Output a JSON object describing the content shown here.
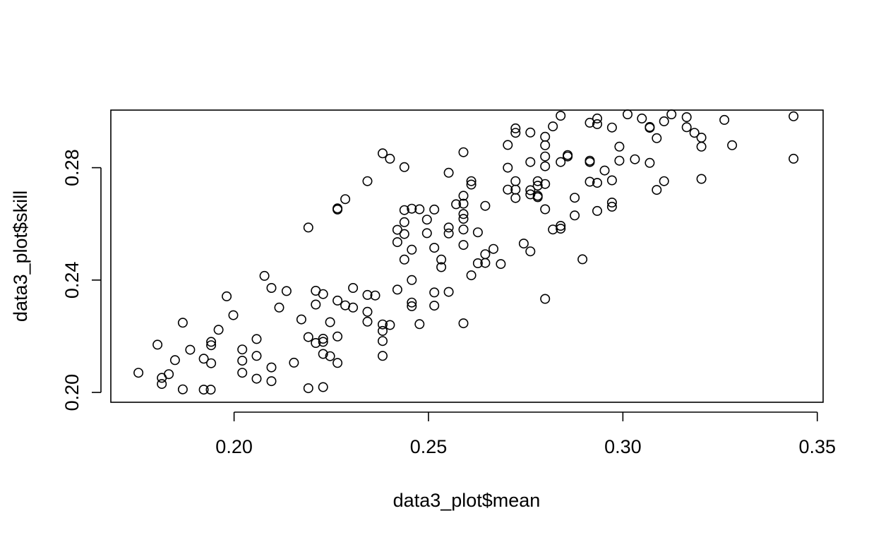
{
  "chart_data": {
    "type": "scatter",
    "title": "",
    "xlabel": "data3_plot$mean",
    "ylabel": "data3_plot$skill",
    "xlim": [
      0.1683,
      0.3515
    ],
    "ylim": [
      0.1965,
      0.3005
    ],
    "grid": false,
    "legend": "none",
    "x_ticks": [
      {
        "value": 0.2,
        "label": "0.20"
      },
      {
        "value": 0.25,
        "label": "0.25"
      },
      {
        "value": 0.3,
        "label": "0.30"
      },
      {
        "value": 0.35,
        "label": "0.35"
      }
    ],
    "y_ticks": [
      {
        "value": 0.2,
        "label": "0.20"
      },
      {
        "value": 0.24,
        "label": "0.24"
      },
      {
        "value": 0.28,
        "label": "0.28"
      }
    ],
    "marker": {
      "shape": "open-circle",
      "color": "#000000"
    },
    "points": [
      [
        0.1754,
        0.207
      ],
      [
        0.1803,
        0.217
      ],
      [
        0.1814,
        0.2052
      ],
      [
        0.1814,
        0.203
      ],
      [
        0.1832,
        0.2065
      ],
      [
        0.1848,
        0.2115
      ],
      [
        0.1868,
        0.2248
      ],
      [
        0.1868,
        0.2011
      ],
      [
        0.1887,
        0.2152
      ],
      [
        0.1922,
        0.212
      ],
      [
        0.1922,
        0.201
      ],
      [
        0.194,
        0.201
      ],
      [
        0.1941,
        0.218
      ],
      [
        0.1941,
        0.2168
      ],
      [
        0.1941,
        0.2104
      ],
      [
        0.196,
        0.2223
      ],
      [
        0.1981,
        0.2342
      ],
      [
        0.1998,
        0.2275
      ],
      [
        0.2021,
        0.2153
      ],
      [
        0.2021,
        0.2113
      ],
      [
        0.2021,
        0.207
      ],
      [
        0.2058,
        0.219
      ],
      [
        0.2058,
        0.213
      ],
      [
        0.2058,
        0.2049
      ],
      [
        0.2078,
        0.2415
      ],
      [
        0.2096,
        0.2372
      ],
      [
        0.2096,
        0.2089
      ],
      [
        0.2096,
        0.204
      ],
      [
        0.2116,
        0.2302
      ],
      [
        0.2135,
        0.2361
      ],
      [
        0.2154,
        0.2106
      ],
      [
        0.2173,
        0.226
      ],
      [
        0.2191,
        0.2587
      ],
      [
        0.2191,
        0.2197
      ],
      [
        0.2191,
        0.2015
      ],
      [
        0.221,
        0.2362
      ],
      [
        0.221,
        0.2313
      ],
      [
        0.221,
        0.2176
      ],
      [
        0.2229,
        0.235
      ],
      [
        0.2229,
        0.2191
      ],
      [
        0.2229,
        0.218
      ],
      [
        0.2229,
        0.2137
      ],
      [
        0.2229,
        0.2019
      ],
      [
        0.2247,
        0.225
      ],
      [
        0.2247,
        0.2129
      ],
      [
        0.2266,
        0.2655
      ],
      [
        0.2266,
        0.2651
      ],
      [
        0.2266,
        0.2327
      ],
      [
        0.2266,
        0.2199
      ],
      [
        0.2266,
        0.2105
      ],
      [
        0.2286,
        0.2688
      ],
      [
        0.2286,
        0.231
      ],
      [
        0.2306,
        0.2372
      ],
      [
        0.2306,
        0.2302
      ],
      [
        0.2343,
        0.2752
      ],
      [
        0.2343,
        0.2347
      ],
      [
        0.2343,
        0.2287
      ],
      [
        0.2343,
        0.2252
      ],
      [
        0.2363,
        0.2345
      ],
      [
        0.2382,
        0.2851
      ],
      [
        0.2382,
        0.2242
      ],
      [
        0.2382,
        0.2219
      ],
      [
        0.2382,
        0.2183
      ],
      [
        0.2382,
        0.213
      ],
      [
        0.2401,
        0.2832
      ],
      [
        0.2401,
        0.224
      ],
      [
        0.242,
        0.2579
      ],
      [
        0.242,
        0.2535
      ],
      [
        0.242,
        0.2366
      ],
      [
        0.2438,
        0.2802
      ],
      [
        0.2438,
        0.2649
      ],
      [
        0.2438,
        0.2606
      ],
      [
        0.2438,
        0.2564
      ],
      [
        0.2438,
        0.2473
      ],
      [
        0.2457,
        0.2654
      ],
      [
        0.2457,
        0.2508
      ],
      [
        0.2457,
        0.24
      ],
      [
        0.2457,
        0.232
      ],
      [
        0.2457,
        0.2307
      ],
      [
        0.2477,
        0.2652
      ],
      [
        0.2477,
        0.2243
      ],
      [
        0.2496,
        0.2615
      ],
      [
        0.2496,
        0.2567
      ],
      [
        0.2515,
        0.2651
      ],
      [
        0.2515,
        0.2515
      ],
      [
        0.2515,
        0.2356
      ],
      [
        0.2515,
        0.2309
      ],
      [
        0.2533,
        0.2473
      ],
      [
        0.2533,
        0.2446
      ],
      [
        0.2552,
        0.2782
      ],
      [
        0.2552,
        0.2587
      ],
      [
        0.2552,
        0.2566
      ],
      [
        0.2552,
        0.2358
      ],
      [
        0.2571,
        0.267
      ],
      [
        0.259,
        0.2855
      ],
      [
        0.259,
        0.27
      ],
      [
        0.259,
        0.2672
      ],
      [
        0.259,
        0.2635
      ],
      [
        0.259,
        0.2618
      ],
      [
        0.259,
        0.258
      ],
      [
        0.259,
        0.2525
      ],
      [
        0.259,
        0.2246
      ],
      [
        0.261,
        0.2752
      ],
      [
        0.261,
        0.274
      ],
      [
        0.261,
        0.2417
      ],
      [
        0.2627,
        0.257
      ],
      [
        0.2627,
        0.246
      ],
      [
        0.2646,
        0.2664
      ],
      [
        0.2646,
        0.2492
      ],
      [
        0.2646,
        0.2461
      ],
      [
        0.2667,
        0.2511
      ],
      [
        0.2686,
        0.2457
      ],
      [
        0.2704,
        0.2881
      ],
      [
        0.2704,
        0.28
      ],
      [
        0.2704,
        0.2722
      ],
      [
        0.2724,
        0.294
      ],
      [
        0.2724,
        0.2924
      ],
      [
        0.2724,
        0.2752
      ],
      [
        0.2724,
        0.2722
      ],
      [
        0.2724,
        0.2692
      ],
      [
        0.2745,
        0.253
      ],
      [
        0.2762,
        0.2925
      ],
      [
        0.2762,
        0.282
      ],
      [
        0.2762,
        0.272
      ],
      [
        0.2762,
        0.2705
      ],
      [
        0.2762,
        0.2502
      ],
      [
        0.2781,
        0.2752
      ],
      [
        0.2781,
        0.2736
      ],
      [
        0.2781,
        0.27
      ],
      [
        0.2781,
        0.2695
      ],
      [
        0.28,
        0.291
      ],
      [
        0.28,
        0.288
      ],
      [
        0.28,
        0.284
      ],
      [
        0.28,
        0.2805
      ],
      [
        0.28,
        0.2742
      ],
      [
        0.28,
        0.2652
      ],
      [
        0.28,
        0.2333
      ],
      [
        0.282,
        0.2947
      ],
      [
        0.282,
        0.258
      ],
      [
        0.284,
        0.2985
      ],
      [
        0.284,
        0.282
      ],
      [
        0.284,
        0.2593
      ],
      [
        0.284,
        0.2583
      ],
      [
        0.2858,
        0.2845
      ],
      [
        0.2858,
        0.284
      ],
      [
        0.2876,
        0.2693
      ],
      [
        0.2876,
        0.263
      ],
      [
        0.2896,
        0.2474
      ],
      [
        0.2915,
        0.296
      ],
      [
        0.2915,
        0.2825
      ],
      [
        0.2915,
        0.282
      ],
      [
        0.2915,
        0.275
      ],
      [
        0.2934,
        0.2975
      ],
      [
        0.2934,
        0.2955
      ],
      [
        0.2934,
        0.2746
      ],
      [
        0.2934,
        0.2646
      ],
      [
        0.2953,
        0.279
      ],
      [
        0.2972,
        0.2943
      ],
      [
        0.2972,
        0.2755
      ],
      [
        0.2972,
        0.2676
      ],
      [
        0.2972,
        0.2661
      ],
      [
        0.2991,
        0.2875
      ],
      [
        0.2991,
        0.2825
      ],
      [
        0.3012,
        0.299
      ],
      [
        0.3031,
        0.283
      ],
      [
        0.3049,
        0.2975
      ],
      [
        0.3069,
        0.2945
      ],
      [
        0.3069,
        0.2942
      ],
      [
        0.3069,
        0.2817
      ],
      [
        0.3087,
        0.2905
      ],
      [
        0.3087,
        0.2721
      ],
      [
        0.3106,
        0.2965
      ],
      [
        0.3106,
        0.2752
      ],
      [
        0.3125,
        0.299
      ],
      [
        0.3164,
        0.298
      ],
      [
        0.3164,
        0.2944
      ],
      [
        0.3184,
        0.2924
      ],
      [
        0.3202,
        0.2907
      ],
      [
        0.3202,
        0.2875
      ],
      [
        0.3202,
        0.276
      ],
      [
        0.3261,
        0.297
      ],
      [
        0.3281,
        0.288
      ],
      [
        0.3439,
        0.2983
      ],
      [
        0.3439,
        0.2832
      ]
    ]
  }
}
